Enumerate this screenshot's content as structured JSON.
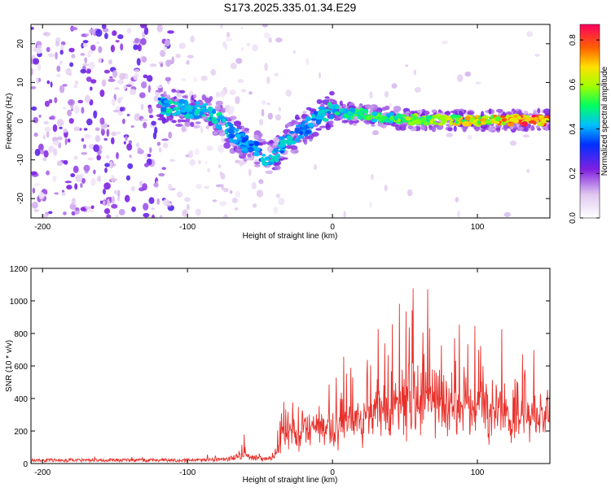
{
  "title": "S173.2025.335.01.34.E29",
  "chart_data": [
    {
      "type": "heatmap",
      "xlabel": "Height of straight line (km)",
      "ylabel": "Frequency (Hz)",
      "xlim": [
        -208,
        150
      ],
      "ylim": [
        -25,
        25
      ],
      "xticks": [
        -200,
        -100,
        0,
        100
      ],
      "yticks": [
        -20,
        -10,
        0,
        10,
        20
      ],
      "colorbar": {
        "label": "Normalized spectral amplitude",
        "range": [
          0.0,
          0.87
        ],
        "ticks": [
          "0.0",
          "0.2",
          "0.4",
          "0.6",
          "0.8"
        ],
        "tick_values": [
          0.0,
          0.2,
          0.4,
          0.6,
          0.8
        ]
      },
      "ridge": {
        "x": [
          -120,
          -110,
          -100,
          -90,
          -80,
          -70,
          -60,
          -50,
          -45,
          -40,
          -35,
          -30,
          -20,
          -10,
          0,
          10,
          20,
          30,
          40,
          50,
          60,
          70,
          80,
          90,
          100,
          110,
          120,
          130,
          140,
          150
        ],
        "freq": [
          4,
          3.5,
          3,
          3,
          1,
          -3,
          -6,
          -8,
          -10,
          -9,
          -6,
          -5,
          -2,
          1,
          3,
          2,
          2,
          1,
          1,
          0.5,
          0.5,
          0.3,
          0.3,
          0.3,
          0.3,
          0.3,
          0.3,
          0.3,
          0.2,
          0.2
        ],
        "amplitude": [
          0.3,
          0.35,
          0.3,
          0.32,
          0.35,
          0.3,
          0.25,
          0.3,
          0.35,
          0.3,
          0.3,
          0.32,
          0.3,
          0.3,
          0.35,
          0.4,
          0.4,
          0.45,
          0.45,
          0.5,
          0.5,
          0.55,
          0.6,
          0.65,
          0.7,
          0.7,
          0.75,
          0.8,
          0.85,
          0.85
        ]
      }
    },
    {
      "type": "line",
      "xlabel": "Height of straight line (km)",
      "ylabel": "SNR (10 * v/v)",
      "xlim": [
        -208,
        150
      ],
      "ylim": [
        0,
        1200
      ],
      "xticks": [
        -200,
        -100,
        0,
        100
      ],
      "yticks": [
        0,
        200,
        400,
        600,
        800,
        1000,
        1200
      ],
      "color": "#e8302a",
      "envelope": {
        "x": [
          -208,
          -150,
          -100,
          -75,
          -65,
          -62,
          -58,
          -45,
          -40,
          -35,
          -25,
          -15,
          -5,
          0,
          10,
          20,
          30,
          40,
          50,
          60,
          70,
          80,
          90,
          100,
          110,
          120,
          130,
          140,
          150
        ],
        "base": [
          20,
          20,
          20,
          25,
          40,
          60,
          40,
          25,
          40,
          120,
          150,
          170,
          180,
          180,
          200,
          220,
          230,
          240,
          260,
          270,
          260,
          260,
          260,
          260,
          260,
          260,
          270,
          270,
          280
        ],
        "peak": [
          40,
          40,
          45,
          60,
          110,
          250,
          90,
          60,
          140,
          350,
          500,
          580,
          650,
          600,
          650,
          760,
          760,
          900,
          1100,
          1200,
          1050,
          1050,
          950,
          1000,
          800,
          850,
          700,
          650,
          840
        ]
      }
    }
  ]
}
